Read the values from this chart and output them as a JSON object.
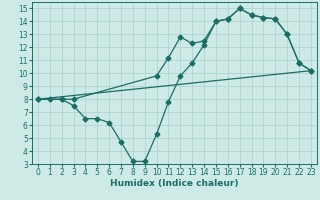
{
  "xlabel": "Humidex (Indice chaleur)",
  "bg_color": "#ceeae7",
  "grid_color": "#afd4d0",
  "line_color": "#1a6e65",
  "xlim": [
    -0.5,
    23.5
  ],
  "ylim": [
    3,
    15.5
  ],
  "xticks": [
    0,
    1,
    2,
    3,
    4,
    5,
    6,
    7,
    8,
    9,
    10,
    11,
    12,
    13,
    14,
    15,
    16,
    17,
    18,
    19,
    20,
    21,
    22,
    23
  ],
  "yticks": [
    3,
    4,
    5,
    6,
    7,
    8,
    9,
    10,
    11,
    12,
    13,
    14,
    15
  ],
  "line1_x": [
    0,
    1,
    2,
    3,
    10,
    11,
    12,
    13,
    14,
    15,
    16,
    17,
    18,
    19,
    20,
    21,
    22,
    23
  ],
  "line1_y": [
    8,
    8,
    8,
    8,
    9.8,
    11.2,
    12.8,
    12.3,
    12.5,
    14.0,
    14.2,
    15.0,
    14.5,
    14.3,
    14.2,
    13.0,
    10.8,
    10.2
  ],
  "line2_x": [
    0,
    2,
    3,
    4,
    5,
    6,
    7,
    8,
    9,
    10,
    11,
    12,
    13,
    14,
    15,
    16,
    17,
    18,
    19,
    20,
    21,
    22,
    23
  ],
  "line2_y": [
    8,
    8,
    7.5,
    6.5,
    6.5,
    6.2,
    4.7,
    3.2,
    3.2,
    5.3,
    7.8,
    9.8,
    10.8,
    12.2,
    14.0,
    14.2,
    15.0,
    14.5,
    14.3,
    14.2,
    13.0,
    10.8,
    10.2
  ],
  "line3_x": [
    0,
    23
  ],
  "line3_y": [
    8,
    10.2
  ],
  "marker_size": 2.5,
  "lw": 0.9,
  "tick_fontsize": 5.5,
  "label_fontsize": 6.5
}
